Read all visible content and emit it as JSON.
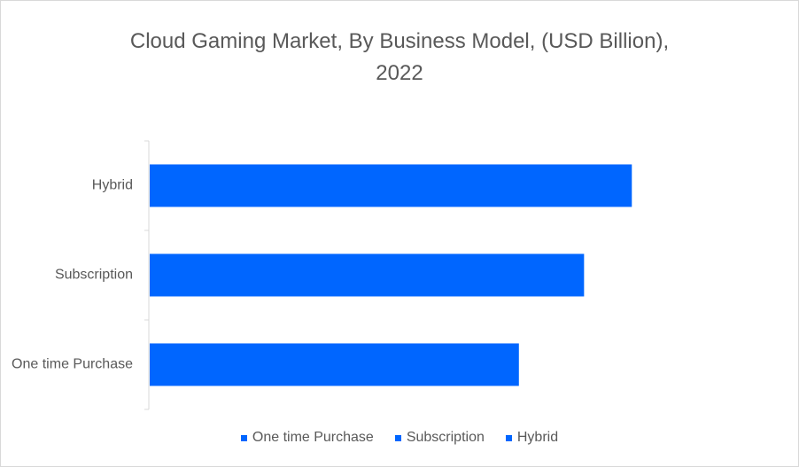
{
  "chart_data": {
    "type": "bar",
    "orientation": "horizontal",
    "title_line1": "Cloud Gaming Market, By Business Model, (USD Billion),",
    "title_line2": "2022",
    "categories": [
      "One time Purchase",
      "Subscription",
      "Hybrid"
    ],
    "series": [
      {
        "values": [
          0.85,
          1.0,
          1.11
        ],
        "color": "#0066ff"
      }
    ],
    "xlim": [
      0,
      1.45
    ],
    "grid": false,
    "legend": {
      "position": "bottom",
      "entries": [
        "One time Purchase",
        "Subscription",
        "Hybrid"
      ]
    }
  }
}
